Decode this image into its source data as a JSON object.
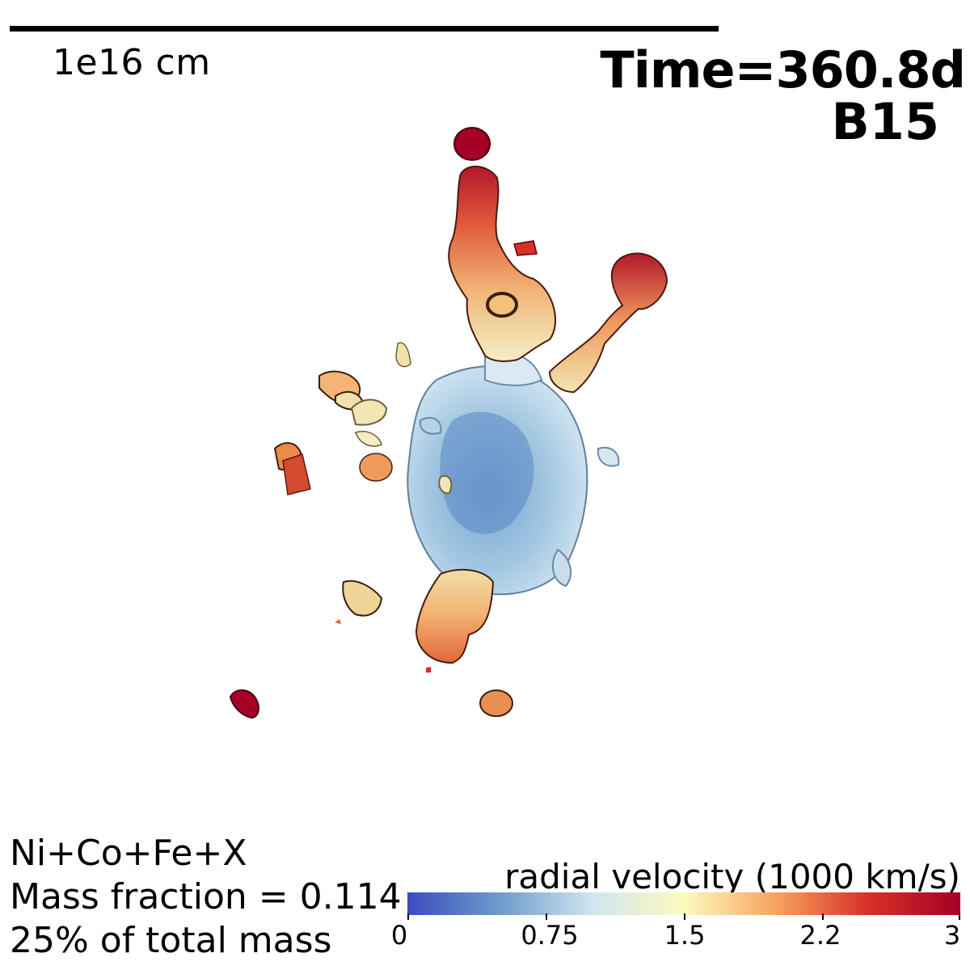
{
  "scale_bar": {
    "label": "1e16 cm"
  },
  "header": {
    "time": "Time=360.8d",
    "model": "B15"
  },
  "info": {
    "species": "Ni+Co+Fe+X",
    "mass_fraction": "Mass fraction = 0.114",
    "total_mass": "25% of total mass"
  },
  "colorbar": {
    "title": "radial velocity (1000 km/s)",
    "ticks": [
      "0",
      "0.75",
      "1.5",
      "2.2",
      "3"
    ],
    "tick_values": [
      0,
      0.75,
      1.5,
      2.25,
      3
    ],
    "range": [
      0,
      3
    ],
    "colors": [
      "#3b4cc0",
      "#6d9bcb",
      "#cfe5f0",
      "#fdfbc0",
      "#f7a35f",
      "#d73027",
      "#a50026"
    ]
  }
}
